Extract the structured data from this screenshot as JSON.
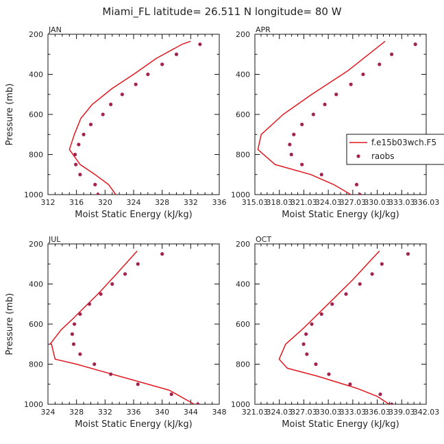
{
  "figure": {
    "title": "Miami_FL  latitude= 26.511 N longitude= 80 W"
  },
  "chart_data": [
    {
      "type": "line",
      "title": "JAN",
      "xlabel": "Moist Static Energy (kJ/kg)",
      "ylabel": "Pressure (mb)",
      "xlim": [
        312,
        336
      ],
      "ylim": [
        1000,
        200
      ],
      "x_tick_labels": [
        "312",
        "316",
        "320",
        "324",
        "328",
        "332",
        "336"
      ],
      "y_tick_labels": [
        "200",
        "400",
        "600",
        "800",
        "1000"
      ],
      "legend": null,
      "series": [
        {
          "type": "line",
          "color": "#e0161e",
          "x": [
            321.5,
            320.5,
            318.6,
            316.5,
            315.0,
            315.7,
            316.6,
            318.2,
            321.0,
            324.0,
            327.2,
            330.8,
            332.0
          ],
          "y": [
            1000,
            950,
            900,
            850,
            775,
            700,
            620,
            550,
            470,
            400,
            320,
            250,
            235
          ]
        },
        {
          "type": "scatter",
          "color": "#a3254f",
          "x": [
            319.0,
            318.6,
            316.5,
            315.9,
            315.8,
            316.3,
            317.0,
            318.0,
            319.7,
            320.8,
            322.4,
            324.3,
            326.0,
            328.0,
            330.0,
            333.3
          ],
          "y": [
            1000,
            950,
            900,
            850,
            800,
            750,
            700,
            650,
            600,
            550,
            500,
            450,
            400,
            350,
            300,
            250
          ]
        }
      ]
    },
    {
      "type": "line",
      "title": "APR",
      "xlabel": "Moist Static Energy (kJ/kg)",
      "ylabel": "",
      "xlim": [
        315.03,
        336.03
      ],
      "ylim": [
        1000,
        200
      ],
      "x_tick_labels": [
        "315.03",
        "318.03",
        "321.03",
        "324.03",
        "327.03",
        "330.03",
        "333.03",
        "336.03"
      ],
      "y_tick_labels": [
        "200",
        "400",
        "600",
        "800",
        "1000"
      ],
      "legend": {
        "placement": "right",
        "entries": [
          "f.e15b03wch.F5",
          "raobs"
        ]
      },
      "series": [
        {
          "name": "f.e15b03wch.F5",
          "type": "line",
          "color": "#e0161e",
          "x": [
            326.8,
            324.7,
            321.9,
            317.5,
            315.4,
            315.8,
            318.5,
            322.0,
            326.5,
            331.0
          ],
          "y": [
            1000,
            950,
            900,
            850,
            775,
            700,
            600,
            500,
            380,
            235
          ]
        },
        {
          "name": "raobs",
          "type": "scatter",
          "color": "#a3254f",
          "x": [
            327.9,
            327.5,
            323.2,
            320.8,
            319.5,
            319.3,
            319.8,
            320.8,
            322.2,
            323.6,
            325.0,
            326.8,
            328.3,
            330.3,
            331.8,
            334.7
          ],
          "y": [
            1000,
            950,
            900,
            850,
            800,
            750,
            700,
            650,
            600,
            550,
            500,
            450,
            400,
            350,
            300,
            250
          ]
        }
      ]
    },
    {
      "type": "line",
      "title": "JUL",
      "xlabel": "Moist Static Energy (kJ/kg)",
      "ylabel": "Pressure (mb)",
      "xlim": [
        324,
        348
      ],
      "ylim": [
        1000,
        200
      ],
      "x_tick_labels": [
        "324",
        "328",
        "332",
        "336",
        "340",
        "344",
        "348"
      ],
      "y_tick_labels": [
        "200",
        "400",
        "600",
        "800",
        "1000"
      ],
      "legend": null,
      "series": [
        {
          "type": "line",
          "color": "#e0161e",
          "x": [
            344.5,
            343.5,
            341.0,
            336.0,
            331.0,
            328.0,
            325.0,
            324.5,
            324.3,
            325.8,
            327.3,
            329.0,
            331.0,
            333.6,
            336.5
          ],
          "y": [
            1000,
            980,
            930,
            880,
            830,
            800,
            775,
            700,
            700,
            630,
            580,
            520,
            450,
            350,
            235
          ]
        },
        {
          "type": "scatter",
          "color": "#a3254f",
          "x": [
            345.0,
            341.3,
            336.6,
            332.8,
            330.5,
            328.5,
            327.6,
            327.4,
            327.7,
            328.5,
            329.8,
            331.4,
            333.0,
            334.8,
            336.6,
            340.0
          ],
          "y": [
            1000,
            950,
            900,
            850,
            800,
            750,
            700,
            650,
            600,
            550,
            500,
            450,
            400,
            350,
            300,
            250
          ]
        }
      ]
    },
    {
      "type": "line",
      "title": "OCT",
      "xlabel": "Moist Static Energy (kJ/kg)",
      "ylabel": "",
      "xlim": [
        321.03,
        342.03
      ],
      "ylim": [
        1000,
        200
      ],
      "x_tick_labels": [
        "321.03",
        "324.03",
        "327.03",
        "330.03",
        "333.03",
        "336.03",
        "339.03",
        "342.03"
      ],
      "y_tick_labels": [
        "200",
        "400",
        "600",
        "800",
        "1000"
      ],
      "legend": null,
      "series": [
        {
          "type": "line",
          "color": "#e0161e",
          "x": [
            337.5,
            336.0,
            333.5,
            328.7,
            325.0,
            324.0,
            324.8,
            327.0,
            330.0,
            333.0,
            336.3
          ],
          "y": [
            1000,
            960,
            920,
            860,
            820,
            775,
            700,
            620,
            500,
            380,
            235
          ]
        },
        {
          "type": "scatter",
          "color": "#a3254f",
          "x": [
            337.8,
            336.4,
            332.7,
            330.1,
            328.5,
            327.4,
            327.0,
            327.3,
            328.0,
            329.2,
            330.5,
            332.2,
            333.9,
            335.4,
            336.6,
            339.8
          ],
          "y": [
            1000,
            950,
            900,
            850,
            800,
            750,
            700,
            650,
            600,
            550,
            500,
            450,
            400,
            350,
            300,
            250
          ]
        }
      ]
    }
  ]
}
